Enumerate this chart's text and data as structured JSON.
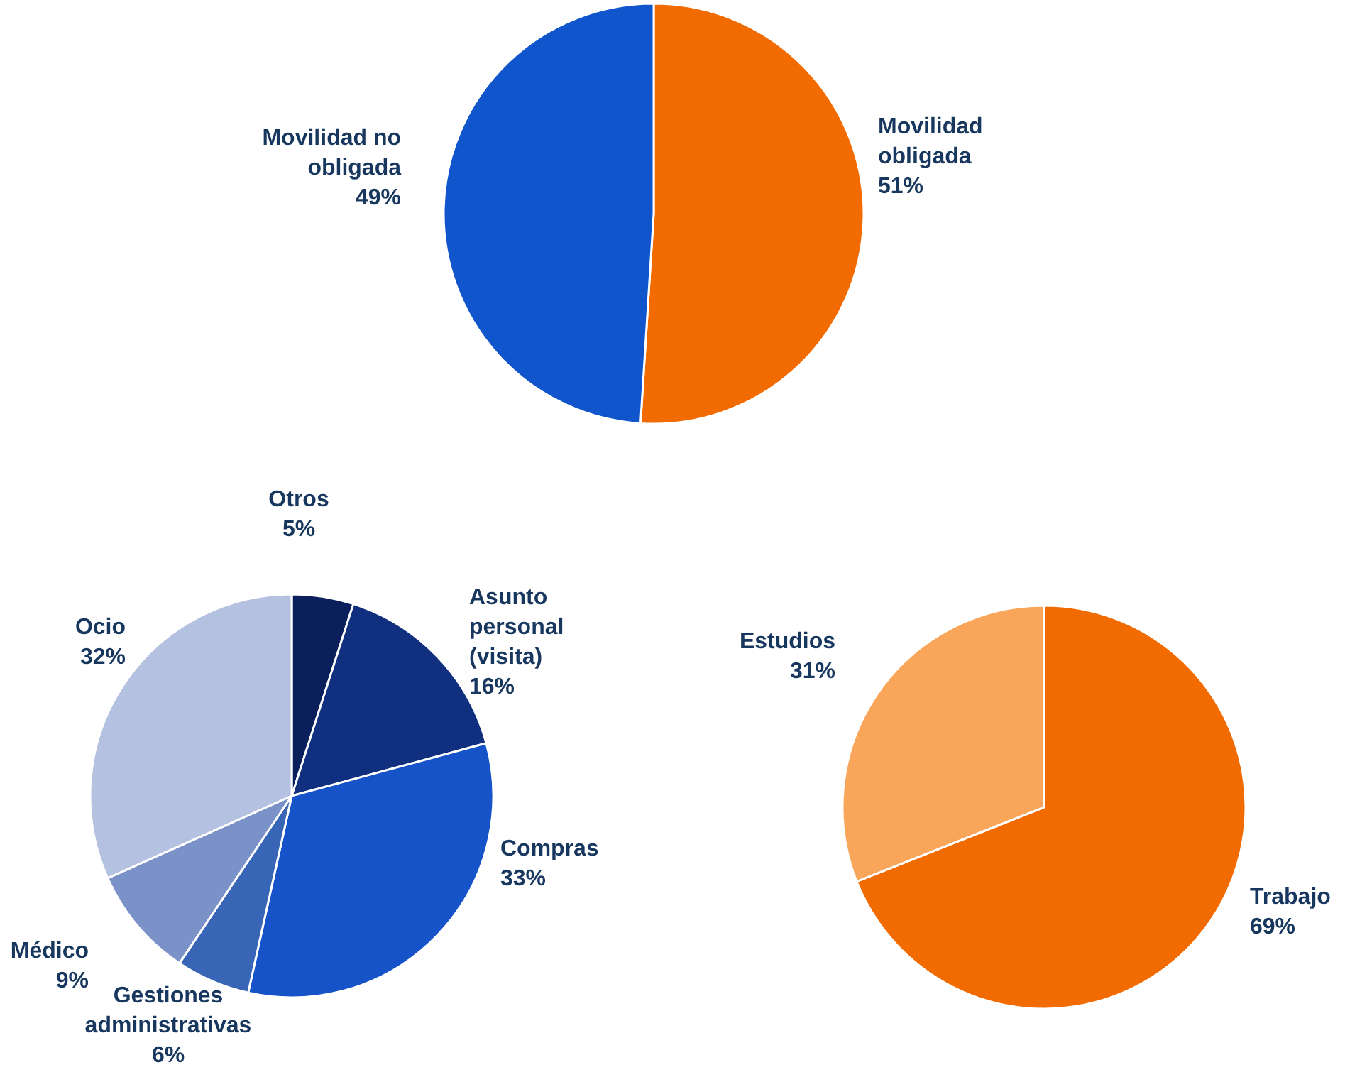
{
  "chart_data": [
    {
      "type": "pie",
      "categories": [
        "Movilidad obligada",
        "Movilidad no obligada"
      ],
      "values": [
        51,
        49
      ],
      "value_labels": [
        "51%",
        "49%"
      ],
      "colors": [
        "#f26b00",
        "#1155cc"
      ]
    },
    {
      "type": "pie",
      "categories": [
        "Otros",
        "Asunto personal (visita)",
        "Compras",
        "Gestiones administrativas",
        "Médico",
        "Ocio"
      ],
      "values": [
        5,
        16,
        33,
        6,
        9,
        32
      ],
      "value_labels": [
        "5%",
        "16%",
        "33%",
        "6%",
        "9%",
        "32%"
      ],
      "colors": [
        "#0a1f5c",
        "#10307f",
        "#1652c8",
        "#3865b5",
        "#7b92c9",
        "#b4c1e1"
      ]
    },
    {
      "type": "pie",
      "categories": [
        "Trabajo",
        "Estudios"
      ],
      "values": [
        69,
        31
      ],
      "value_labels": [
        "69%",
        "31%"
      ],
      "colors": [
        "#f26b00",
        "#f9a55a"
      ]
    }
  ]
}
